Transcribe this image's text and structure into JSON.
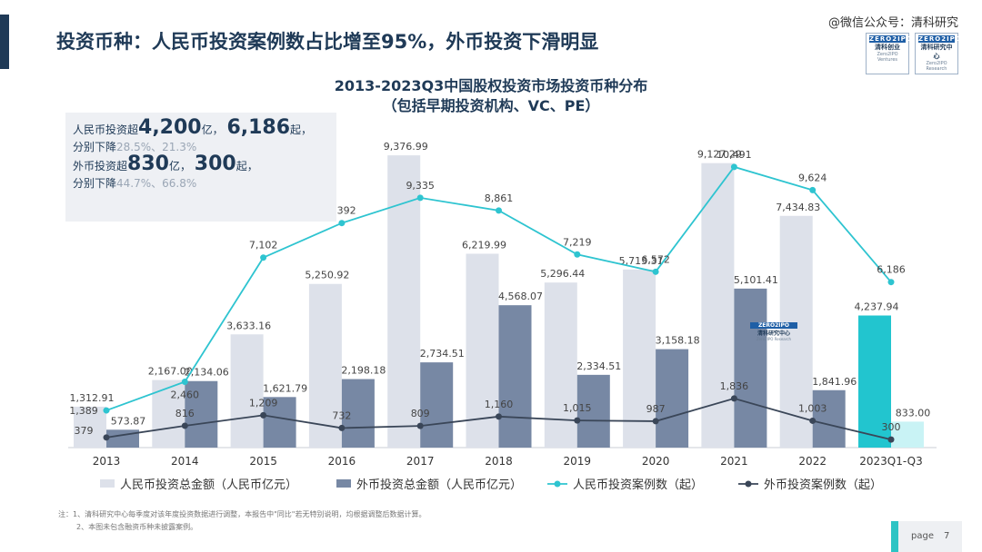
{
  "header": {
    "title": "投资币种：人民币投资案例数占比增至95%，外币投资下滑明显",
    "wechat": "@微信公众号：清科研究",
    "logo_left": {
      "top": "ZERO2IPO",
      "sub": "清科创业",
      "tiny": "Zero2IPO Ventures"
    },
    "logo_right": {
      "top": "ZERO2IPO",
      "sub": "清科研究中心",
      "tiny": "Zero2IPO Research"
    }
  },
  "summary": {
    "rmb_prefix": "人民币投资超",
    "rmb_amount": "4,200",
    "unit_yi": "亿，",
    "rmb_count": "6,186",
    "unit_qi": "起，",
    "drop_label": "分别下降",
    "rmb_drop": "28.5%、21.3%",
    "fx_prefix": "外币投资超",
    "fx_amount": "830",
    "fx_count": "300",
    "fx_drop": "44.7%、66.8%"
  },
  "chart_data": {
    "type": "bar",
    "title": "2013-2023Q3中国股权投资市场投资币种分布",
    "subtitle": "（包括早期投资机构、VC、PE）",
    "categories": [
      "2013",
      "2014",
      "2015",
      "2016",
      "2017",
      "2018",
      "2019",
      "2020",
      "2021",
      "2022",
      "2023Q1-Q3"
    ],
    "series": [
      {
        "name": "人民币投资总金额（人民币亿元）",
        "kind": "bar",
        "axis": "left",
        "color": "#dde1ea",
        "values": [
          1312.91,
          2167.0,
          3633.16,
          5250.92,
          9376.99,
          6219.99,
          5296.44,
          5713.31,
          9127.29,
          7434.83,
          4237.94
        ],
        "labels": [
          "1,312.91",
          "2,167.00",
          "3,633.16",
          "5,250.92",
          "9,376.99",
          "6,219.99",
          "5,296.44",
          "5,713.31",
          "9,127.29",
          "7,434.83",
          "4,237.94"
        ],
        "highlight_color": "#22c5cf"
      },
      {
        "name": "外币投资总金额（人民币亿元）",
        "kind": "bar",
        "axis": "left",
        "color": "#7788a4",
        "values": [
          573.87,
          2134.06,
          1621.79,
          2198.18,
          2734.51,
          4568.07,
          2334.51,
          3158.18,
          5101.41,
          1841.96,
          833.0
        ],
        "labels": [
          "573.87",
          "2,134.06",
          "1,621.79",
          "2,198.18",
          "2,734.51",
          "4,568.07",
          "2,334.51",
          "3,158.18",
          "5,101.41",
          "1,841.96",
          "833.00"
        ],
        "highlight_color": "#c9f3f5"
      },
      {
        "name": "人民币投资案例数（起）",
        "kind": "line",
        "axis": "right",
        "color": "#2ec4d0",
        "values": [
          1389,
          2460,
          7102,
          8392,
          9335,
          8861,
          7219,
          6572,
          10491,
          9624,
          6186
        ],
        "labels": [
          "1,389",
          "2,460",
          "7,102",
          "8,392",
          "9,335",
          "8,861",
          "7,219",
          "6,572",
          "10,491",
          "9,624",
          "6,186"
        ]
      },
      {
        "name": "外币投资案例数（起）",
        "kind": "line",
        "axis": "right",
        "color": "#3a4658",
        "values": [
          379,
          816,
          1209,
          732,
          809,
          1160,
          1015,
          987,
          1836,
          1003,
          300
        ],
        "labels": [
          "379",
          "816",
          "1,209",
          "732",
          "809",
          "1,160",
          "1,015",
          "987",
          "1,836",
          "1,003",
          "300"
        ]
      }
    ],
    "legend_position": "bottom",
    "grid": false
  },
  "watermark": {
    "top": "ZERO2IPO",
    "sub": "清科研究中心",
    "tiny": "Zero2IPO Research"
  },
  "footnote": {
    "line1": "注：1、清科研究中心每季度对该年度投资数据进行调整，本报告中\"同比\"若无特别说明，均根据调整后数据计算。",
    "line2": "2、本图未包含融资币种未披露案例。"
  },
  "page": {
    "label": "page",
    "number": "7"
  }
}
